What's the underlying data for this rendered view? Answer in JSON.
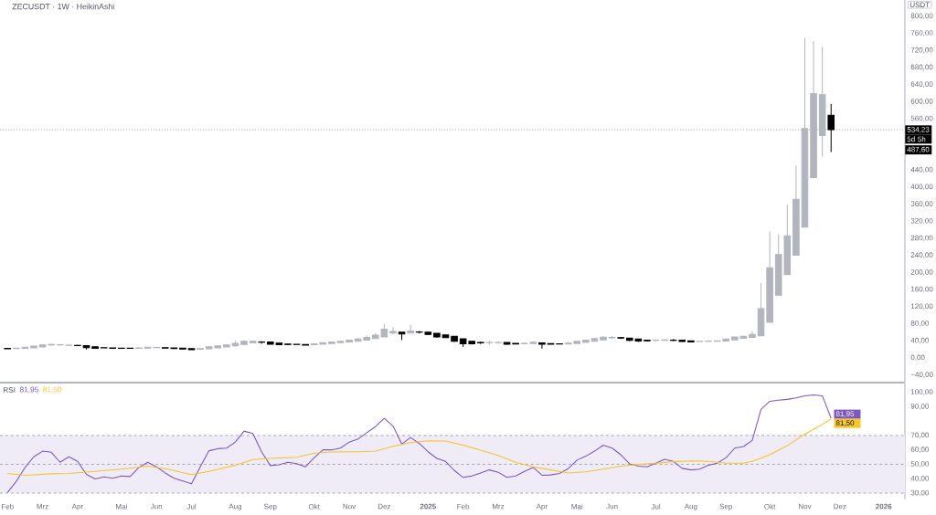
{
  "chart_data": [
    {
      "type": "candlestick",
      "title": "ZECUSDT · 1W · HeikinAshi",
      "ylabel": "USDT",
      "x": [
        "2024-02-05",
        "2024-02-12",
        "2024-02-19",
        "2024-02-26",
        "2024-03-04",
        "2024-03-11",
        "2024-03-18",
        "2024-03-25",
        "2024-04-01",
        "2024-04-08",
        "2024-04-15",
        "2024-04-22",
        "2024-04-29",
        "2024-05-06",
        "2024-05-13",
        "2024-05-20",
        "2024-05-27",
        "2024-06-03",
        "2024-06-10",
        "2024-06-17",
        "2024-06-24",
        "2024-07-01",
        "2024-07-08",
        "2024-07-15",
        "2024-07-22",
        "2024-07-29",
        "2024-08-05",
        "2024-08-12",
        "2024-08-19",
        "2024-08-26",
        "2024-09-02",
        "2024-09-09",
        "2024-09-16",
        "2024-09-23",
        "2024-09-30",
        "2024-10-07",
        "2024-10-14",
        "2024-10-21",
        "2024-10-28",
        "2024-11-04",
        "2024-11-11",
        "2024-11-18",
        "2024-11-25",
        "2024-12-02",
        "2024-12-09",
        "2024-12-16",
        "2024-12-23",
        "2024-12-30",
        "2025-01-06",
        "2025-01-13",
        "2025-01-20",
        "2025-01-27",
        "2025-02-03",
        "2025-02-10",
        "2025-02-17",
        "2025-02-24",
        "2025-03-03",
        "2025-03-10",
        "2025-03-17",
        "2025-03-24",
        "2025-03-31",
        "2025-04-07",
        "2025-04-14",
        "2025-04-21",
        "2025-04-28",
        "2025-05-05",
        "2025-05-12",
        "2025-05-19",
        "2025-05-26",
        "2025-06-02",
        "2025-06-09",
        "2025-06-16",
        "2025-06-23",
        "2025-06-30",
        "2025-07-07",
        "2025-07-14",
        "2025-07-21",
        "2025-07-28",
        "2025-08-04",
        "2025-08-11",
        "2025-08-18",
        "2025-08-25",
        "2025-09-01",
        "2025-09-08",
        "2025-09-15",
        "2025-09-22",
        "2025-09-29",
        "2025-10-06",
        "2025-10-13",
        "2025-10-20",
        "2025-10-27",
        "2025-11-03",
        "2025-11-10",
        "2025-11-17",
        "2025-11-24"
      ],
      "ohlc": [
        [
          22,
          23,
          20,
          21
        ],
        [
          21.5,
          24,
          21,
          22.5
        ],
        [
          22,
          26,
          21.5,
          25
        ],
        [
          23.5,
          29,
          23,
          27.5
        ],
        [
          25.5,
          32,
          25,
          30
        ],
        [
          30,
          34,
          28,
          31
        ],
        [
          30,
          32.5,
          28.5,
          30.5
        ],
        [
          29,
          31,
          27.5,
          29.5
        ],
        [
          29,
          30.5,
          27.5,
          28.5
        ],
        [
          28.5,
          29.5,
          19.5,
          24
        ],
        [
          26,
          26.5,
          21.5,
          22
        ],
        [
          24,
          25,
          22.5,
          23.5
        ],
        [
          23.5,
          24,
          21,
          22
        ],
        [
          22.5,
          23.5,
          21.5,
          22
        ],
        [
          22.5,
          23,
          21,
          22
        ],
        [
          22,
          25,
          21.5,
          23
        ],
        [
          22.5,
          25.5,
          22,
          25
        ],
        [
          24,
          26,
          23,
          24.5
        ],
        [
          24,
          24.5,
          21.5,
          22.5
        ],
        [
          23.5,
          23.5,
          20.5,
          21.5
        ],
        [
          22.5,
          22.5,
          20,
          20.5
        ],
        [
          21.5,
          22,
          18,
          19
        ],
        [
          20,
          22.5,
          18.5,
          21.5
        ],
        [
          21,
          27,
          20.5,
          26
        ],
        [
          23.5,
          29,
          23,
          28
        ],
        [
          25.5,
          31,
          25,
          30
        ],
        [
          28,
          40,
          26,
          34
        ],
        [
          31,
          41,
          30.5,
          38.5
        ],
        [
          35,
          41,
          34,
          39
        ],
        [
          37,
          39,
          33,
          36.5
        ],
        [
          37,
          37,
          30.5,
          32
        ],
        [
          34.5,
          35,
          29.5,
          30.5
        ],
        [
          32.5,
          33,
          29.5,
          31
        ],
        [
          32,
          33,
          30,
          31.5
        ],
        [
          31.5,
          32,
          28.5,
          29.5
        ],
        [
          30.5,
          34,
          30,
          33
        ],
        [
          32,
          36.5,
          31.5,
          35.5
        ],
        [
          33.5,
          38,
          33,
          37
        ],
        [
          35.5,
          40,
          35,
          38.5
        ],
        [
          37,
          43,
          36,
          41.5
        ],
        [
          39,
          46,
          38.5,
          44
        ],
        [
          41.5,
          52,
          41,
          48
        ],
        [
          45,
          58,
          44,
          53
        ],
        [
          49,
          79,
          48,
          67
        ],
        [
          58,
          72,
          55,
          62
        ],
        [
          60,
          61,
          41.5,
          56
        ],
        [
          58,
          77,
          57,
          63
        ],
        [
          60.5,
          63,
          57,
          60
        ],
        [
          60,
          61,
          53,
          55
        ],
        [
          57.5,
          58,
          47,
          49
        ],
        [
          53.5,
          54,
          46,
          47.5
        ],
        [
          50.5,
          51,
          37,
          39
        ],
        [
          44.5,
          45,
          25.5,
          33
        ],
        [
          39,
          39,
          31,
          33
        ],
        [
          36,
          38,
          32.5,
          35
        ],
        [
          35.5,
          40,
          30,
          36
        ],
        [
          35.5,
          39,
          33,
          36
        ],
        [
          36,
          36,
          30,
          32
        ],
        [
          34,
          34.5,
          31,
          32.5
        ],
        [
          33,
          36,
          32,
          34
        ],
        [
          33.5,
          38,
          33,
          36.5
        ],
        [
          35,
          35.5,
          21.5,
          32
        ],
        [
          33.5,
          34,
          31,
          32
        ],
        [
          33,
          34,
          31.5,
          32.5
        ],
        [
          32.5,
          36.5,
          32,
          34.5
        ],
        [
          33.5,
          40,
          33,
          38.5
        ],
        [
          36,
          43,
          35.5,
          41.5
        ],
        [
          38.5,
          47,
          38,
          45
        ],
        [
          42,
          51,
          41,
          48.5
        ],
        [
          47,
          51,
          44,
          48
        ],
        [
          47.5,
          49,
          44,
          46
        ],
        [
          46.5,
          47,
          38.5,
          41
        ],
        [
          44,
          44.5,
          37,
          39.5
        ],
        [
          41.5,
          42,
          38,
          40
        ],
        [
          41,
          43,
          39,
          41.5
        ],
        [
          41,
          44,
          40,
          42
        ],
        [
          41.5,
          44,
          39,
          41
        ],
        [
          41.5,
          42,
          36.5,
          38
        ],
        [
          40,
          40,
          36,
          37
        ],
        [
          38,
          39.5,
          37,
          38.5
        ],
        [
          38.5,
          41,
          37,
          39.5
        ],
        [
          39,
          41,
          38,
          40
        ],
        [
          39.5,
          45,
          39,
          44
        ],
        [
          42,
          50,
          41,
          49
        ],
        [
          45.5,
          52,
          45,
          50.5
        ],
        [
          48,
          62,
          47,
          55
        ],
        [
          51.5,
          175,
          50.5,
          115
        ],
        [
          83,
          296,
          82,
          211
        ],
        [
          147,
          289,
          146,
          242
        ],
        [
          195,
          359,
          194,
          286
        ],
        [
          240.5,
          450,
          240,
          371.5
        ],
        [
          306,
          749,
          305,
          537
        ],
        [
          422,
          742,
          421,
          619
        ],
        [
          520.5,
          728,
          471,
          616
        ],
        [
          568,
          594,
          482,
          534.23
        ]
      ],
      "colors": [
        "#000000",
        "#b2b5be",
        "#b2b5be",
        "#b2b5be",
        "#b2b5be",
        "#b2b5be",
        "#b2b5be",
        "#b2b5be",
        "#000000",
        "#000000",
        "#000000",
        "#000000",
        "#000000",
        "#000000",
        "#000000",
        "#b2b5be",
        "#b2b5be",
        "#b2b5be",
        "#000000",
        "#000000",
        "#000000",
        "#000000",
        "#b2b5be",
        "#b2b5be",
        "#b2b5be",
        "#b2b5be",
        "#b2b5be",
        "#b2b5be",
        "#b2b5be",
        "#000000",
        "#000000",
        "#000000",
        "#000000",
        "#000000",
        "#000000",
        "#b2b5be",
        "#b2b5be",
        "#b2b5be",
        "#b2b5be",
        "#b2b5be",
        "#b2b5be",
        "#b2b5be",
        "#b2b5be",
        "#b2b5be",
        "#b2b5be",
        "#000000",
        "#b2b5be",
        "#000000",
        "#000000",
        "#000000",
        "#000000",
        "#000000",
        "#000000",
        "#000000",
        "#000000",
        "#b2b5be",
        "#b2b5be",
        "#000000",
        "#000000",
        "#b2b5be",
        "#b2b5be",
        "#000000",
        "#000000",
        "#000000",
        "#b2b5be",
        "#b2b5be",
        "#b2b5be",
        "#b2b5be",
        "#b2b5be",
        "#b2b5be",
        "#000000",
        "#000000",
        "#000000",
        "#000000",
        "#b2b5be",
        "#b2b5be",
        "#000000",
        "#000000",
        "#000000",
        "#b2b5be",
        "#b2b5be",
        "#b2b5be",
        "#b2b5be",
        "#b2b5be",
        "#b2b5be",
        "#b2b5be",
        "#b2b5be",
        "#b2b5be",
        "#b2b5be",
        "#b2b5be",
        "#b2b5be",
        "#b2b5be",
        "#b2b5be",
        "#b2b5be",
        "#000000"
      ],
      "xlim": [
        "2024-01-30",
        "2026-01-22"
      ],
      "ylim": [
        -58,
        838
      ],
      "yticks": [
        {
          "value": -40,
          "label": "−40,00"
        },
        {
          "value": 0,
          "label": "0,00"
        },
        {
          "value": 40,
          "label": "40,00"
        },
        {
          "value": 80,
          "label": "80,00"
        },
        {
          "value": 120,
          "label": "120,00"
        },
        {
          "value": 160,
          "label": "160,00"
        },
        {
          "value": 200,
          "label": "200,00"
        },
        {
          "value": 240,
          "label": "240,00"
        },
        {
          "value": 280,
          "label": "280,00"
        },
        {
          "value": 320,
          "label": "320,00"
        },
        {
          "value": 360,
          "label": "360,00"
        },
        {
          "value": 400,
          "label": "400,00"
        },
        {
          "value": 440,
          "label": "440,00"
        },
        {
          "value": 560,
          "label": "560,00"
        },
        {
          "value": 600,
          "label": "600,00"
        },
        {
          "value": 640,
          "label": "640,00"
        },
        {
          "value": 680,
          "label": "680,00"
        },
        {
          "value": 720,
          "label": "720,00"
        },
        {
          "value": 760,
          "label": "760,00"
        },
        {
          "value": 800,
          "label": "800,00"
        }
      ],
      "tick_labels": "y",
      "ref_lines": [
        {
          "axis": "y",
          "value": 534.23,
          "label": "534,23",
          "line_style": "dotted",
          "color": "#9598a1"
        }
      ],
      "annotations": [
        "5d 5h",
        {
          "text": "487,60",
          "y": 487.6
        }
      ]
    },
    {
      "type": "line",
      "title": "RSI",
      "x": [
        "2024-02-05",
        "2024-02-12",
        "2024-02-19",
        "2024-02-26",
        "2024-03-04",
        "2024-03-11",
        "2024-03-18",
        "2024-03-25",
        "2024-04-01",
        "2024-04-08",
        "2024-04-15",
        "2024-04-22",
        "2024-04-29",
        "2024-05-06",
        "2024-05-13",
        "2024-05-20",
        "2024-05-27",
        "2024-06-03",
        "2024-06-10",
        "2024-06-17",
        "2024-06-24",
        "2024-07-01",
        "2024-07-08",
        "2024-07-15",
        "2024-07-22",
        "2024-07-29",
        "2024-08-05",
        "2024-08-12",
        "2024-08-19",
        "2024-08-26",
        "2024-09-02",
        "2024-09-09",
        "2024-09-16",
        "2024-09-23",
        "2024-09-30",
        "2024-10-07",
        "2024-10-14",
        "2024-10-21",
        "2024-10-28",
        "2024-11-04",
        "2024-11-11",
        "2024-11-18",
        "2024-11-25",
        "2024-12-02",
        "2024-12-09",
        "2024-12-16",
        "2024-12-23",
        "2024-12-30",
        "2025-01-06",
        "2025-01-13",
        "2025-01-20",
        "2025-01-27",
        "2025-02-03",
        "2025-02-10",
        "2025-02-17",
        "2025-02-24",
        "2025-03-03",
        "2025-03-10",
        "2025-03-17",
        "2025-03-24",
        "2025-03-31",
        "2025-04-07",
        "2025-04-14",
        "2025-04-21",
        "2025-04-28",
        "2025-05-05",
        "2025-05-12",
        "2025-05-19",
        "2025-05-26",
        "2025-06-02",
        "2025-06-09",
        "2025-06-16",
        "2025-06-23",
        "2025-06-30",
        "2025-07-07",
        "2025-07-14",
        "2025-07-21",
        "2025-07-28",
        "2025-08-04",
        "2025-08-11",
        "2025-08-18",
        "2025-08-25",
        "2025-09-01",
        "2025-09-08",
        "2025-09-15",
        "2025-09-22",
        "2025-09-29",
        "2025-10-06",
        "2025-10-13",
        "2025-10-20",
        "2025-10-27",
        "2025-11-03",
        "2025-11-10",
        "2025-11-17",
        "2025-11-24"
      ],
      "series": [
        {
          "color": "#7e57c2",
          "values": [
            30.4,
            38.2,
            47.8,
            55.2,
            59.1,
            58.3,
            51.4,
            55.2,
            52.0,
            43.0,
            39.9,
            41.3,
            40.3,
            41.9,
            41.5,
            47.8,
            51.4,
            48.2,
            44.0,
            40.3,
            38.4,
            36.5,
            48.2,
            59.4,
            60.8,
            61.2,
            65.4,
            73.0,
            71.3,
            58.7,
            49.1,
            49.7,
            51.4,
            50.5,
            48.2,
            54.5,
            60.0,
            60.0,
            61.2,
            65.4,
            67.5,
            71.9,
            76.1,
            81.8,
            76.5,
            64.0,
            68.6,
            64.4,
            58.7,
            54.1,
            52.0,
            45.7,
            40.9,
            41.9,
            44.0,
            46.1,
            44.5,
            40.9,
            41.9,
            45.1,
            47.8,
            42.4,
            42.6,
            43.6,
            47.0,
            52.9,
            55.6,
            59.1,
            63.3,
            61.2,
            56.6,
            50.3,
            48.7,
            48.2,
            50.8,
            53.5,
            52.0,
            47.2,
            46.1,
            46.6,
            49.3,
            50.8,
            54.5,
            61.2,
            62.3,
            66.5,
            88.1,
            93.7,
            94.4,
            95.0,
            96.0,
            97.5,
            98.1,
            97.5,
            81.95
          ],
          "value_labels": [
            null,
            null,
            null,
            null,
            null,
            null,
            null,
            null,
            null,
            null,
            null,
            null,
            null,
            null,
            null,
            null,
            null,
            null,
            null,
            null,
            null,
            null,
            null,
            null,
            null,
            null,
            null,
            null,
            null,
            null,
            null,
            null,
            null,
            null,
            null,
            null,
            null,
            null,
            null,
            null,
            null,
            null,
            null,
            null,
            null,
            null,
            null,
            null,
            null,
            null,
            null,
            null,
            null,
            null,
            null,
            null,
            null,
            null,
            null,
            null,
            null,
            null,
            null,
            null,
            null,
            null,
            null,
            null,
            null,
            null,
            null,
            null,
            null,
            null,
            null,
            null,
            null,
            null,
            null,
            null,
            null,
            null,
            null,
            null,
            null,
            null,
            null,
            null,
            null,
            null,
            null,
            null,
            null,
            null,
            "81,95"
          ]
        },
        {
          "color": "#f7c61f",
          "x": [
            "2024-02-05",
            "2024-02-19",
            "2024-03-11",
            "2024-03-25",
            "2024-04-15",
            "2024-05-06",
            "2024-05-27",
            "2024-06-10",
            "2024-07-01",
            "2024-07-15",
            "2024-08-05",
            "2024-08-19",
            "2024-09-02",
            "2024-09-23",
            "2024-10-07",
            "2024-10-21",
            "2024-11-11",
            "2024-11-25",
            "2024-12-09",
            "2024-12-23",
            "2025-01-06",
            "2025-01-20",
            "2025-02-03",
            "2025-02-17",
            "2025-03-03",
            "2025-03-17",
            "2025-03-31",
            "2025-04-14",
            "2025-04-28",
            "2025-05-12",
            "2025-05-26",
            "2025-06-09",
            "2025-06-23",
            "2025-07-07",
            "2025-07-21",
            "2025-08-04",
            "2025-08-18",
            "2025-09-01",
            "2025-09-15",
            "2025-09-22",
            "2025-10-06",
            "2025-10-20",
            "2025-11-03",
            "2025-11-17",
            "2025-11-24"
          ],
          "values": [
            43.6,
            42.4,
            43.4,
            43.6,
            45.1,
            46.6,
            48.7,
            47.0,
            42.8,
            45.1,
            49.3,
            53.3,
            54.1,
            54.9,
            57.7,
            58.5,
            58.7,
            59.1,
            62.5,
            65.0,
            66.3,
            66.1,
            63.3,
            59.8,
            56.2,
            51.4,
            48.2,
            46.1,
            44.0,
            44.7,
            46.6,
            48.7,
            49.9,
            50.8,
            51.8,
            52.4,
            52.0,
            50.8,
            50.8,
            52.0,
            56.6,
            62.9,
            70.9,
            77.6,
            81.5
          ],
          "value_labels": [
            null,
            null,
            null,
            null,
            null,
            null,
            null,
            null,
            null,
            null,
            null,
            null,
            null,
            null,
            null,
            null,
            null,
            null,
            null,
            null,
            null,
            null,
            null,
            null,
            null,
            null,
            null,
            null,
            null,
            null,
            null,
            null,
            null,
            null,
            null,
            null,
            null,
            null,
            null,
            null,
            null,
            null,
            null,
            null,
            "81,50"
          ]
        }
      ],
      "xlim": [
        "2024-01-30",
        "2026-01-22"
      ],
      "ylim": [
        25.6,
        106
      ],
      "yticks": [
        {
          "value": 30,
          "label": "30,00"
        },
        {
          "value": 40,
          "label": "40,00"
        },
        {
          "value": 50,
          "label": "50,00"
        },
        {
          "value": 60,
          "label": "60,00"
        },
        {
          "value": 70,
          "label": "70,00"
        },
        {
          "value": 90,
          "label": "90,00"
        },
        {
          "value": 100,
          "label": "100,00"
        }
      ],
      "xticks": [
        {
          "value": "2024-02-05",
          "label": "Feb"
        },
        {
          "value": "2024-03-04",
          "label": "Mrz"
        },
        {
          "value": "2024-04-01",
          "label": "Apr"
        },
        {
          "value": "2024-05-06",
          "label": "Mai"
        },
        {
          "value": "2024-06-03",
          "label": "Jun"
        },
        {
          "value": "2024-07-01",
          "label": "Jul"
        },
        {
          "value": "2024-08-05",
          "label": "Aug"
        },
        {
          "value": "2024-09-02",
          "label": "Sep"
        },
        {
          "value": "2024-10-07",
          "label": "Okt"
        },
        {
          "value": "2024-11-04",
          "label": "Nov"
        },
        {
          "value": "2024-12-02",
          "label": "Dez"
        },
        {
          "value": "2025-01-06",
          "label": "2025"
        },
        {
          "value": "2025-02-03",
          "label": "Feb"
        },
        {
          "value": "2025-03-03",
          "label": "Mrz"
        },
        {
          "value": "2025-04-07",
          "label": "Apr"
        },
        {
          "value": "2025-05-05",
          "label": "Mai"
        },
        {
          "value": "2025-06-02",
          "label": "Jun"
        },
        {
          "value": "2025-07-07",
          "label": "Jul"
        },
        {
          "value": "2025-08-04",
          "label": "Aug"
        },
        {
          "value": "2025-09-01",
          "label": "Sep"
        },
        {
          "value": "2025-10-06",
          "label": "Okt"
        },
        {
          "value": "2025-11-03",
          "label": "Nov"
        },
        {
          "value": "2025-12-01",
          "label": "Dez"
        },
        {
          "value": "2026-01-05",
          "label": "2026"
        }
      ],
      "ref_lines": [
        {
          "axis": "y",
          "value": 70,
          "line_style": "dashed",
          "color": "#9598a1"
        },
        {
          "axis": "y",
          "value": 50,
          "line_style": "dashed",
          "color": "#9598a1"
        },
        {
          "axis": "y",
          "value": 30,
          "line_style": "dashed",
          "color": "#9598a1"
        }
      ],
      "bands": [
        {
          "axis": "y",
          "from": 30,
          "to": 70,
          "color": "#efebf7"
        }
      ]
    }
  ]
}
